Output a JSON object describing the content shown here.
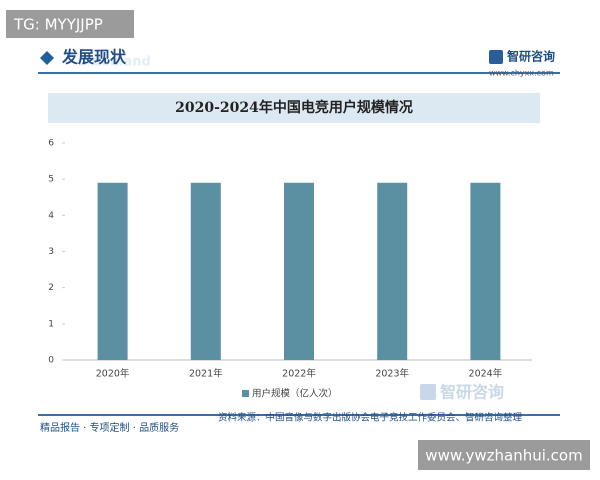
{
  "overlay": {
    "tag": "TG: MYYJJPP",
    "site": "www.ywzhanhui.com"
  },
  "header": {
    "section": "发展现状",
    "faint": "d demand",
    "brand": "智研咨询",
    "url": "www.chyxx.com"
  },
  "chart_data": {
    "type": "bar",
    "title": "2020-2024年中国电竞用户规模情况",
    "categories": [
      "2020年",
      "2021年",
      "2022年",
      "2023年",
      "2024年"
    ],
    "series": [
      {
        "name": "用户规模（亿人次）",
        "color": "#5b8fa2",
        "values": [
          4.9,
          4.9,
          4.9,
          4.9,
          4.9
        ]
      }
    ],
    "ylim": [
      0,
      6
    ],
    "yticks": [
      0,
      1,
      2,
      3,
      4,
      5,
      6
    ],
    "grid": false,
    "legend": "bottom",
    "watermark": "智研咨询"
  },
  "footer": {
    "slogan": "精品报告 · 专项定制 · 品质服务",
    "source": "资料来源：中国音像与数字出版协会电子竞技工作委员会、智研咨询整理"
  }
}
